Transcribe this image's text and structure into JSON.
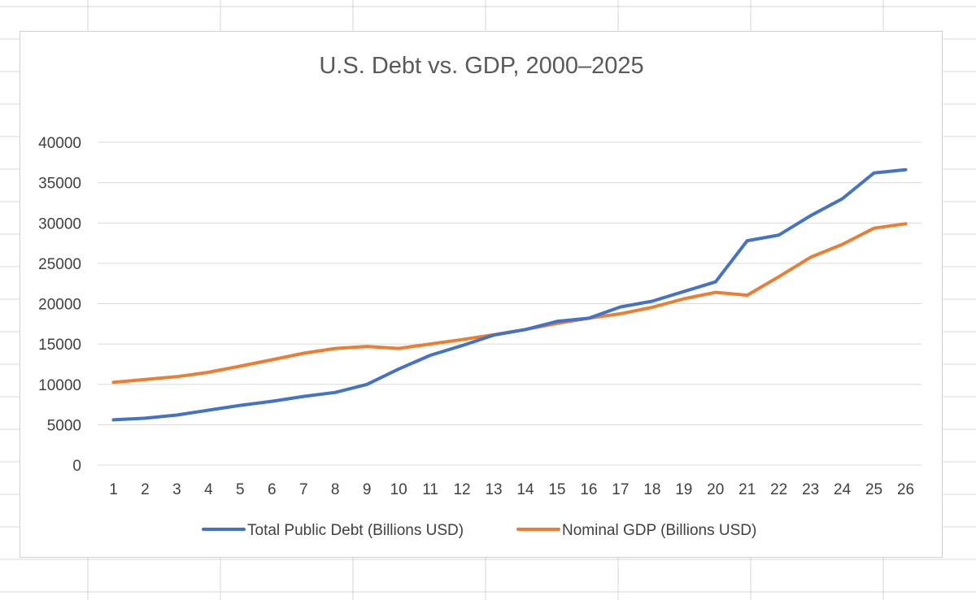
{
  "colors": {
    "debt": "#4472C4",
    "gdp": "#ED7D31",
    "gridline": "#d9d9d9",
    "sheet_grid": "#d4d4d4",
    "text": "#404040",
    "title": "#595959"
  },
  "chart_data": {
    "type": "line",
    "title": "U.S. Debt vs. GDP, 2000–2025",
    "xlabel": "",
    "ylabel": "",
    "categories": [
      "1",
      "2",
      "3",
      "4",
      "5",
      "6",
      "7",
      "8",
      "9",
      "10",
      "11",
      "12",
      "13",
      "14",
      "15",
      "16",
      "17",
      "18",
      "19",
      "20",
      "21",
      "22",
      "23",
      "24",
      "25",
      "26"
    ],
    "ylim": [
      0,
      40000
    ],
    "y_ticks": [
      "0",
      "5000",
      "10000",
      "15000",
      "20000",
      "25000",
      "30000",
      "35000",
      "40000"
    ],
    "grid": true,
    "legend_position": "bottom",
    "series": [
      {
        "name": "Total Public Debt (Billions USD)",
        "values": [
          5600,
          5800,
          6200,
          6800,
          7400,
          7900,
          8500,
          9000,
          10000,
          11900,
          13600,
          14800,
          16100,
          16800,
          17800,
          18200,
          19600,
          20300,
          21500,
          22700,
          27800,
          28500,
          30900,
          33000,
          36200,
          36600
        ]
      },
      {
        "name": "Nominal GDP (Billions USD)",
        "values": [
          10250,
          10600,
          10950,
          11500,
          12250,
          13050,
          13850,
          14450,
          14700,
          14450,
          15000,
          15550,
          16150,
          16800,
          17550,
          18200,
          18750,
          19550,
          20600,
          21400,
          21050,
          23350,
          25750,
          27350,
          29350,
          29900
        ]
      }
    ]
  }
}
